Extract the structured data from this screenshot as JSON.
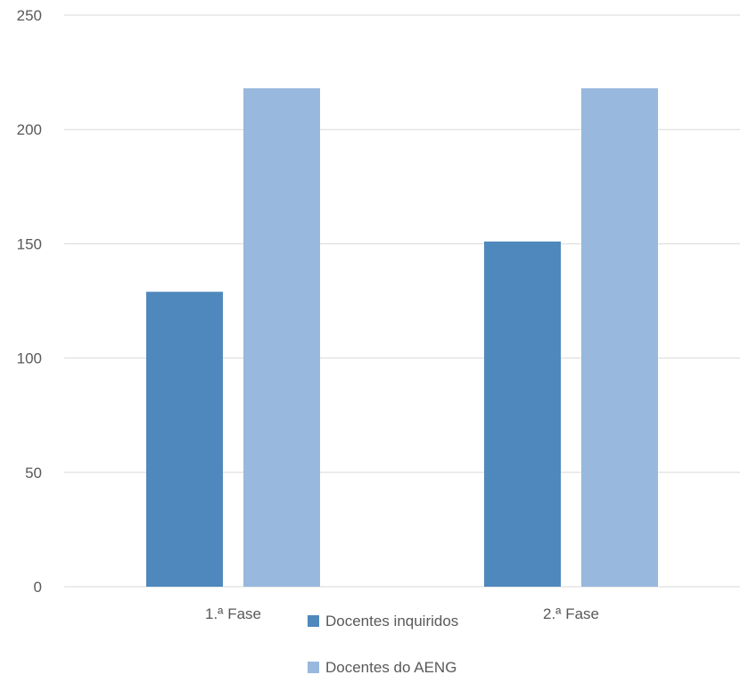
{
  "chart_data": {
    "type": "bar",
    "categories": [
      "1.ª Fase",
      "2.ª Fase"
    ],
    "series": [
      {
        "name": "Docentes inquiridos",
        "values": [
          129,
          151
        ],
        "color": "#4f88bc"
      },
      {
        "name": "Docentes do AENG",
        "values": [
          218,
          218
        ],
        "color": "#98b8de"
      }
    ],
    "yticks": [
      0,
      50,
      100,
      150,
      200,
      250
    ],
    "ylim": [
      0,
      250
    ],
    "grid": true,
    "legend_position": "bottom",
    "gridline_color": "#d9d9d9",
    "text_color": "#595959"
  }
}
